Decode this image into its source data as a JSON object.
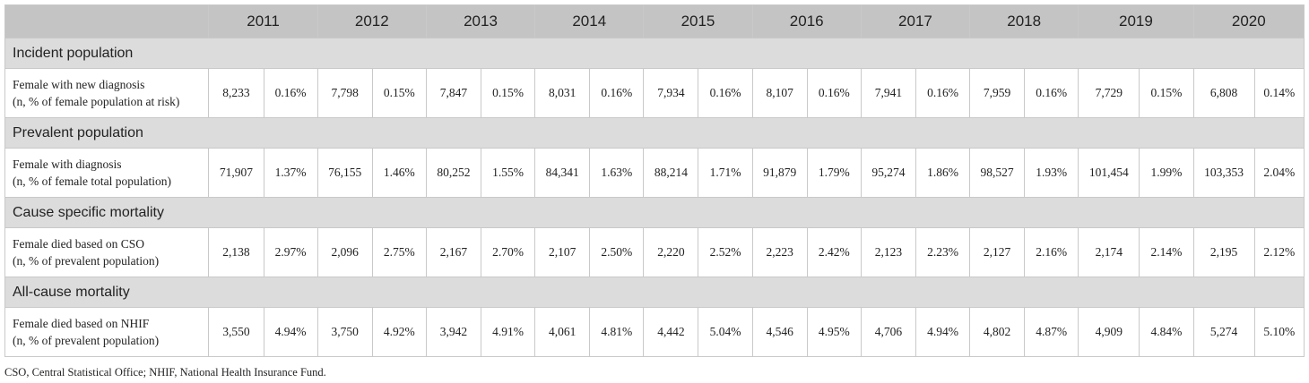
{
  "years": [
    "2011",
    "2012",
    "2013",
    "2014",
    "2015",
    "2016",
    "2017",
    "2018",
    "2019",
    "2020"
  ],
  "sections": [
    {
      "title": "Incident population",
      "row_label_line1": "Female with new diagnosis",
      "row_label_line2": "(n, % of female population at risk)",
      "values": [
        [
          "8,233",
          "0.16%"
        ],
        [
          "7,798",
          "0.15%"
        ],
        [
          "7,847",
          "0.15%"
        ],
        [
          "8,031",
          "0.16%"
        ],
        [
          "7,934",
          "0.16%"
        ],
        [
          "8,107",
          "0.16%"
        ],
        [
          "7,941",
          "0.16%"
        ],
        [
          "7,959",
          "0.16%"
        ],
        [
          "7,729",
          "0.15%"
        ],
        [
          "6,808",
          "0.14%"
        ]
      ]
    },
    {
      "title": "Prevalent population",
      "row_label_line1": "Female with diagnosis",
      "row_label_line2": "(n, % of female total population)",
      "values": [
        [
          "71,907",
          "1.37%"
        ],
        [
          "76,155",
          "1.46%"
        ],
        [
          "80,252",
          "1.55%"
        ],
        [
          "84,341",
          "1.63%"
        ],
        [
          "88,214",
          "1.71%"
        ],
        [
          "91,879",
          "1.79%"
        ],
        [
          "95,274",
          "1.86%"
        ],
        [
          "98,527",
          "1.93%"
        ],
        [
          "101,454",
          "1.99%"
        ],
        [
          "103,353",
          "2.04%"
        ]
      ]
    },
    {
      "title": "Cause specific mortality",
      "row_label_line1": "Female died based on CSO",
      "row_label_line2": "(n, % of prevalent population)",
      "values": [
        [
          "2,138",
          "2.97%"
        ],
        [
          "2,096",
          "2.75%"
        ],
        [
          "2,167",
          "2.70%"
        ],
        [
          "2,107",
          "2.50%"
        ],
        [
          "2,220",
          "2.52%"
        ],
        [
          "2,223",
          "2.42%"
        ],
        [
          "2,123",
          "2.23%"
        ],
        [
          "2,127",
          "2.16%"
        ],
        [
          "2,174",
          "2.14%"
        ],
        [
          "2,195",
          "2.12%"
        ]
      ]
    },
    {
      "title": "All-cause mortality",
      "row_label_line1": "Female died based on NHIF",
      "row_label_line2": "(n, % of prevalent population)",
      "values": [
        [
          "3,550",
          "4.94%"
        ],
        [
          "3,750",
          "4.92%"
        ],
        [
          "3,942",
          "4.91%"
        ],
        [
          "4,061",
          "4.81%"
        ],
        [
          "4,442",
          "5.04%"
        ],
        [
          "4,546",
          "4.95%"
        ],
        [
          "4,706",
          "4.94%"
        ],
        [
          "4,802",
          "4.87%"
        ],
        [
          "4,909",
          "4.84%"
        ],
        [
          "5,274",
          "5.10%"
        ]
      ]
    }
  ],
  "footnote": "CSO, Central Statistical Office; NHIF, National Health Insurance Fund."
}
